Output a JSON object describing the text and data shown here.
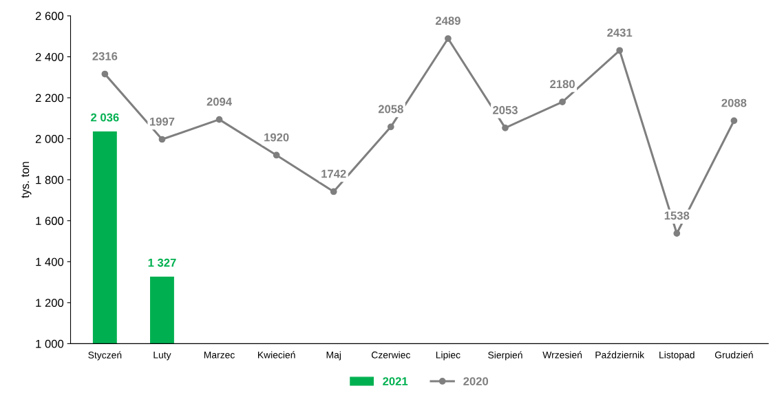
{
  "chart_data": {
    "type": "bar",
    "ylabel": "tys. ton",
    "categories": [
      "Styczeń",
      "Luty",
      "Marzec",
      "Kwiecień",
      "Maj",
      "Czerwiec",
      "Lipiec",
      "Sierpień",
      "Wrzesień",
      "Październik",
      "Listopad",
      "Grudzień"
    ],
    "series": [
      {
        "name": "2021",
        "color": "#00b050",
        "values": [
          2036,
          1327,
          null,
          null,
          null,
          null,
          null,
          null,
          null,
          null,
          null,
          null
        ],
        "value_labels": [
          "2 036",
          "1 327",
          null,
          null,
          null,
          null,
          null,
          null,
          null,
          null,
          null,
          null
        ]
      },
      {
        "name": "2020",
        "type": "line",
        "color": "#7f7f7f",
        "marker": "circle",
        "values": [
          2316,
          1997,
          2094,
          1920,
          1742,
          2058,
          2489,
          2053,
          2180,
          2431,
          1538,
          2088
        ],
        "value_labels": [
          "2316",
          "1997",
          "2094",
          "1920",
          "1742",
          "2058",
          "2489",
          "2053",
          "2180",
          "2431",
          "1538",
          "2088"
        ]
      }
    ],
    "ylim": [
      1000,
      2600
    ],
    "yticks": [
      {
        "value": 1000,
        "label": "1 000"
      },
      {
        "value": 1200,
        "label": "1 200"
      },
      {
        "value": 1400,
        "label": "1 400"
      },
      {
        "value": 1600,
        "label": "1 600"
      },
      {
        "value": 1800,
        "label": "1 800"
      },
      {
        "value": 2000,
        "label": "2 000"
      },
      {
        "value": 2200,
        "label": "2 200"
      },
      {
        "value": 2400,
        "label": "2 400"
      },
      {
        "value": 2600,
        "label": "2 600"
      }
    ],
    "grid": false,
    "legend": "bottom"
  }
}
